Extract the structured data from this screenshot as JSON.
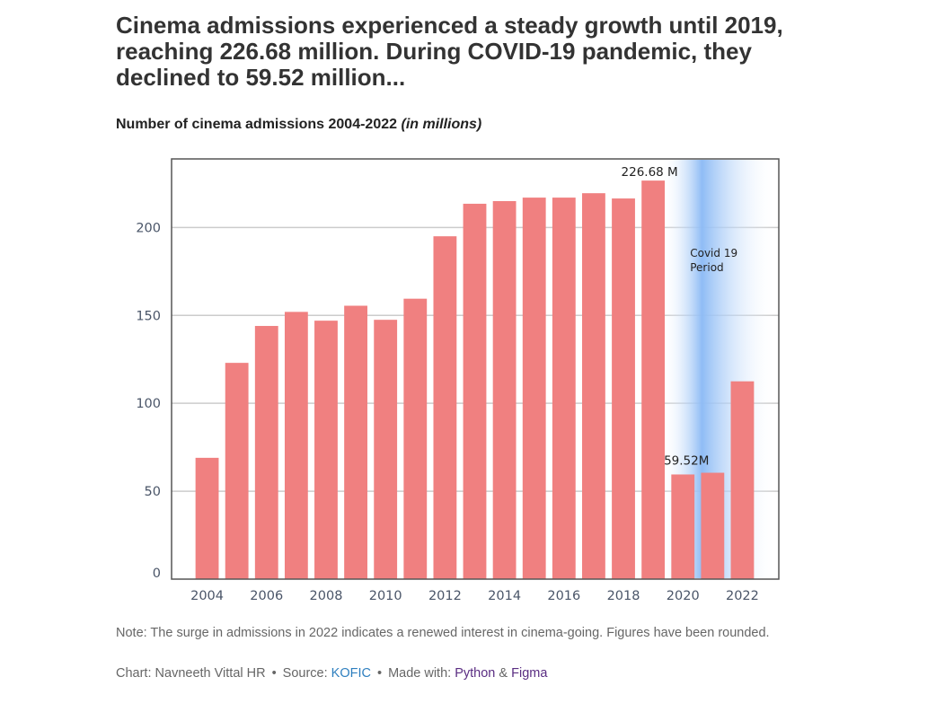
{
  "headline": "Cinema admissions experienced a steady growth until 2019, reaching 226.68 million. During COVID-19 pandemic, they declined to 59.52 million...",
  "subtitle": {
    "main": "Number of cinema admissions 2004-2022",
    "unit": "(in millions)"
  },
  "chart_data": {
    "type": "bar",
    "categories": [
      "2004",
      "2005",
      "2006",
      "2007",
      "2008",
      "2009",
      "2010",
      "2011",
      "2012",
      "2013",
      "2014",
      "2015",
      "2016",
      "2017",
      "2018",
      "2019",
      "2020",
      "2021",
      "2022"
    ],
    "values": [
      69,
      123,
      144,
      152,
      147,
      155.5,
      147.5,
      159.5,
      195,
      213.5,
      215,
      217,
      217,
      219.5,
      216.5,
      226.68,
      59.52,
      60.5,
      112.5
    ],
    "xticks": [
      "2004",
      "2006",
      "2008",
      "2010",
      "2012",
      "2014",
      "2016",
      "2018",
      "2020",
      "2022"
    ],
    "yticks": [
      0,
      50,
      100,
      150,
      200
    ],
    "ylim": [
      0,
      239
    ],
    "grid": "horizontal",
    "bar_color": "#f08080",
    "highlight_color": "#90bdf5",
    "annotations": {
      "peak_label": "226.68 M",
      "low_label": "59.52M",
      "covid_line1": "Covid 19",
      "covid_line2": "Period"
    },
    "covid_period_start": "2019"
  },
  "note": "Note: The surge in admissions in 2022 indicates a renewed interest in cinema-going. Figures have been rounded.",
  "credits": {
    "chart_label": "Chart:",
    "author": "Navneeth Vittal HR",
    "separator": "•",
    "source_label": "Source:",
    "source": "KOFIC",
    "made_label": "Made with:",
    "tool1": "Python",
    "amp": "&",
    "tool2": "Figma"
  }
}
